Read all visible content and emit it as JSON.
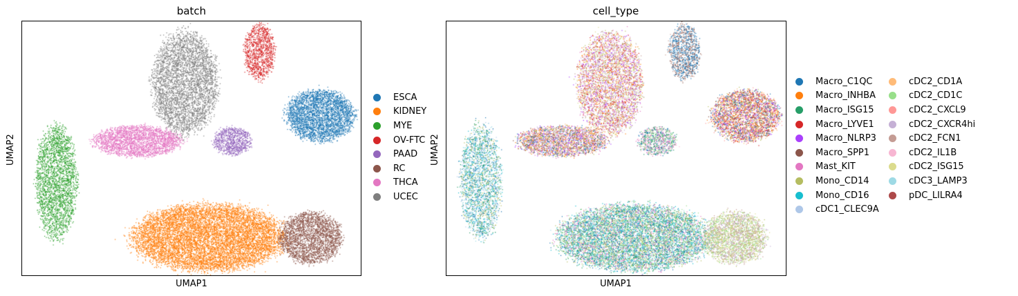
{
  "chart_data": [
    {
      "type": "scatter",
      "title": "batch",
      "xlabel": "UMAP1",
      "ylabel": "UMAP2",
      "ticks": false,
      "legend_placement": "right",
      "legend": [
        {
          "name": "ESCA",
          "color": "#1f77b4"
        },
        {
          "name": "KIDNEY",
          "color": "#ff7f0e"
        },
        {
          "name": "MYE",
          "color": "#2ca02c"
        },
        {
          "name": "OV-FTC",
          "color": "#d62728"
        },
        {
          "name": "PAAD",
          "color": "#9467bd"
        },
        {
          "name": "RC",
          "color": "#8c564b"
        },
        {
          "name": "THCA",
          "color": "#e377c2"
        },
        {
          "name": "UCEC",
          "color": "#7f7f7f"
        }
      ],
      "clusters": [
        {
          "series": "MYE",
          "cx": 0.1,
          "cy": 0.37,
          "rx": 0.06,
          "ry": 0.22,
          "n": 2600
        },
        {
          "series": "THCA",
          "cx": 0.34,
          "cy": 0.53,
          "rx": 0.13,
          "ry": 0.06,
          "n": 2600
        },
        {
          "series": "PAAD",
          "cx": 0.62,
          "cy": 0.53,
          "rx": 0.055,
          "ry": 0.055,
          "n": 900
        },
        {
          "series": "ESCA",
          "cx": 0.88,
          "cy": 0.63,
          "rx": 0.1,
          "ry": 0.1,
          "n": 3200
        },
        {
          "series": "UCEC",
          "cx": 0.48,
          "cy": 0.76,
          "rx": 0.095,
          "ry": 0.2,
          "n": 4000
        },
        {
          "series": "OV-FTC",
          "cx": 0.7,
          "cy": 0.88,
          "rx": 0.045,
          "ry": 0.11,
          "n": 1100
        },
        {
          "series": "KIDNEY",
          "cx": 0.55,
          "cy": 0.15,
          "rx": 0.22,
          "ry": 0.13,
          "n": 9000
        },
        {
          "series": "RC",
          "cx": 0.85,
          "cy": 0.15,
          "rx": 0.09,
          "ry": 0.1,
          "n": 2600
        }
      ]
    },
    {
      "type": "scatter",
      "title": "cell_type",
      "xlabel": "UMAP1",
      "ylabel": "UMAP2",
      "ticks": false,
      "legend_placement": "right",
      "legend": [
        {
          "name": "Macro_C1QC",
          "color": "#1f77b4"
        },
        {
          "name": "Macro_INHBA",
          "color": "#ff7f0e"
        },
        {
          "name": "Macro_ISG15",
          "color": "#279e68"
        },
        {
          "name": "Macro_LYVE1",
          "color": "#d62728"
        },
        {
          "name": "Macro_NLRP3",
          "color": "#aa40fc"
        },
        {
          "name": "Macro_SPP1",
          "color": "#8c564b"
        },
        {
          "name": "Mast_KIT",
          "color": "#e377c2"
        },
        {
          "name": "Mono_CD14",
          "color": "#b5bd61"
        },
        {
          "name": "Mono_CD16",
          "color": "#17becf"
        },
        {
          "name": "cDC1_CLEC9A",
          "color": "#aec7e8"
        },
        {
          "name": "cDC2_CD1A",
          "color": "#ffbb78"
        },
        {
          "name": "cDC2_CD1C",
          "color": "#98df8a"
        },
        {
          "name": "cDC2_CXCL9",
          "color": "#ff9896"
        },
        {
          "name": "cDC2_CXCR4hi",
          "color": "#c5b0d5"
        },
        {
          "name": "cDC2_FCN1",
          "color": "#c49c94"
        },
        {
          "name": "cDC2_IL1B",
          "color": "#f7b6d2"
        },
        {
          "name": "cDC2_ISG15",
          "color": "#dbdb8d"
        },
        {
          "name": "cDC3_LAMP3",
          "color": "#9edae5"
        },
        {
          "name": "pDC_LILRA4",
          "color": "#ad494a"
        }
      ]
    }
  ]
}
